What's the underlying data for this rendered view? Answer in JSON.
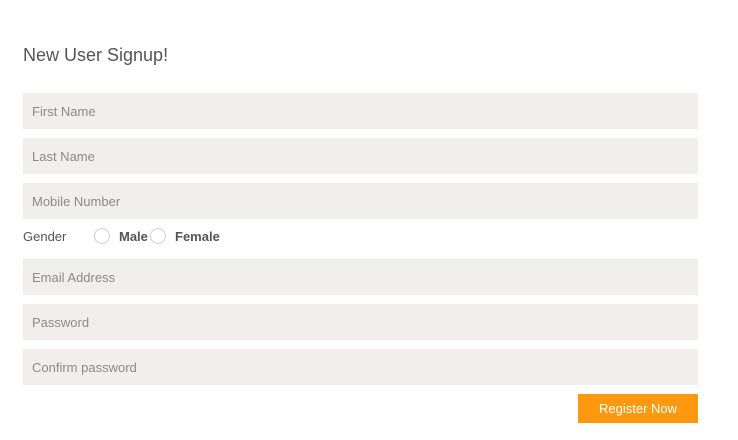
{
  "form": {
    "title": "New User Signup!",
    "fields": {
      "first_name": {
        "placeholder": "First Name",
        "value": ""
      },
      "last_name": {
        "placeholder": "Last Name",
        "value": ""
      },
      "mobile": {
        "placeholder": "Mobile Number",
        "value": ""
      },
      "email": {
        "placeholder": "Email Address",
        "value": ""
      },
      "password": {
        "placeholder": "Password",
        "value": ""
      },
      "confirm_password": {
        "placeholder": "Confirm password",
        "value": ""
      }
    },
    "gender": {
      "label": "Gender",
      "options": [
        "Male",
        "Female"
      ]
    },
    "submit_label": "Register Now",
    "colors": {
      "accent": "#fe980f",
      "field_bg": "#f0efeb"
    }
  }
}
